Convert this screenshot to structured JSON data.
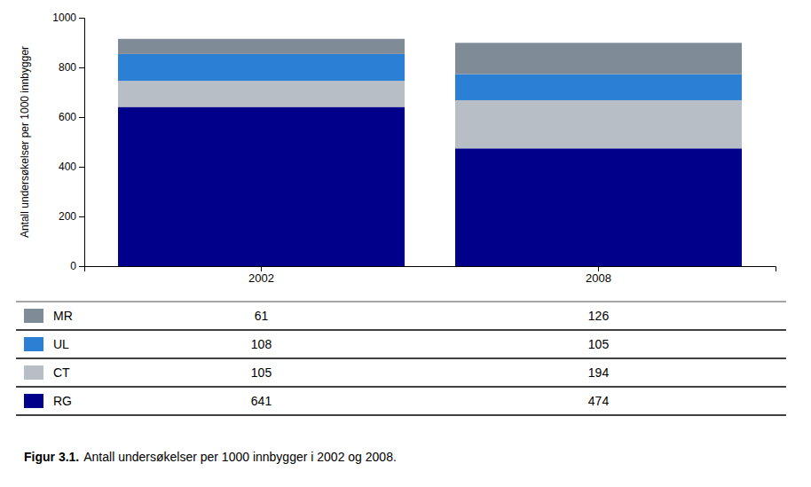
{
  "chart_data": {
    "type": "bar",
    "stacked": true,
    "title": "Figur 3.1.",
    "subtitle": "Antall undersøkelser per 1000 innbygger i 2002 og 2008.",
    "ylabel": "Antall undersøkelser per 1000 innbygger",
    "categories": [
      "2002",
      "2008"
    ],
    "series": [
      {
        "name": "RG",
        "color": "#00008B",
        "values": [
          641,
          474
        ]
      },
      {
        "name": "CT",
        "color": "#B8BEC6",
        "values": [
          105,
          194
        ]
      },
      {
        "name": "UL",
        "color": "#2B7FD4",
        "values": [
          108,
          105
        ]
      },
      {
        "name": "MR",
        "color": "#7F8B96",
        "values": [
          61,
          126
        ]
      }
    ],
    "ylim": [
      0,
      1000
    ],
    "yticks": [
      0,
      200,
      400,
      600,
      800,
      1000
    ],
    "grid": false,
    "legend": "bottom"
  }
}
